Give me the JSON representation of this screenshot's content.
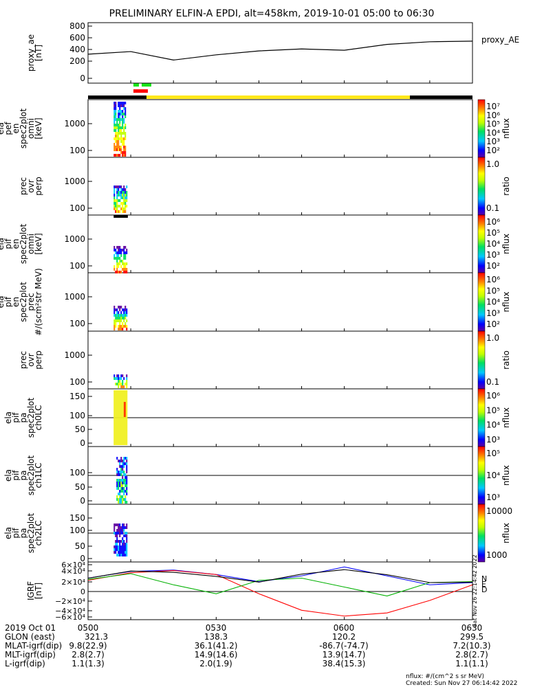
{
  "title": "PRELIMINARY ELFIN-A EPDI, alt=458km, 2019-10-01 05:00 to 06:30",
  "panels": [
    {
      "id": "ae",
      "ylabel": [
        "proxy_ae",
        "[nT]"
      ],
      "yticks": [
        "800",
        "600",
        "400",
        "200",
        "0"
      ],
      "legend": "proxy_AE"
    },
    {
      "id": "pef",
      "ylabel": [
        "ela",
        "pef",
        "en",
        "spec2plot",
        "omni",
        "[keV]"
      ],
      "yticks": [
        "1000",
        "100"
      ],
      "cbar_label": "nflux",
      "cbar_ticks": [
        "10⁷",
        "10⁶",
        "10⁵",
        "10⁴",
        "10³",
        "10²"
      ]
    },
    {
      "id": "ratio1",
      "ylabel": [
        "prec",
        "ovr",
        "perp"
      ],
      "yticks": [
        "1000",
        "100"
      ],
      "cbar_label": "ratio",
      "cbar_ticks": [
        "1.0",
        "0.1"
      ]
    },
    {
      "id": "pif",
      "ylabel": [
        "ela",
        "pif",
        "en",
        "spec2plot",
        "omni",
        "[keV]"
      ],
      "yticks": [
        "1000",
        "100"
      ],
      "cbar_label": "nflux",
      "cbar_ticks": [
        "10⁶",
        "10⁵",
        "10⁴",
        "10³",
        "10²"
      ]
    },
    {
      "id": "pif_prec",
      "ylabel": [
        "ela",
        "pif",
        "en",
        "spec2plot",
        "prec",
        "#/(scm²str MeV)"
      ],
      "yticks": [
        "1000",
        "100"
      ],
      "cbar_label": "nflux",
      "cbar_ticks": [
        "10⁶",
        "10⁵",
        "10⁴",
        "10³",
        "10²"
      ]
    },
    {
      "id": "ratio2",
      "ylabel": [
        "prec",
        "ovr",
        "perp"
      ],
      "yticks": [
        "1000",
        "100"
      ],
      "cbar_label": "ratio",
      "cbar_ticks": [
        "1.0",
        "0.1"
      ]
    },
    {
      "id": "ch0",
      "ylabel": [
        "ela",
        "pif",
        "pa",
        "spec2plot",
        "ch0LC"
      ],
      "yticks": [
        "150",
        "100",
        "50",
        "0"
      ],
      "cbar_label": "nflux",
      "cbar_ticks": [
        "10⁶",
        "10⁵",
        "10⁴",
        "10³"
      ]
    },
    {
      "id": "ch1",
      "ylabel": [
        "ela",
        "pif",
        "pa",
        "spec2plot",
        "ch1LC"
      ],
      "yticks": [
        "100",
        "50",
        "0"
      ],
      "cbar_label": "nflux",
      "cbar_ticks": [
        "10⁵",
        "10⁴",
        "10³"
      ]
    },
    {
      "id": "ch2",
      "ylabel": [
        "ela",
        "pif",
        "pa",
        "spec2plot",
        "ch2LC"
      ],
      "yticks": [
        "150",
        "100",
        "50",
        "0"
      ],
      "cbar_label": "nflux",
      "cbar_ticks": [
        "10000",
        "1000"
      ]
    },
    {
      "id": "igrf",
      "ylabel": [
        "IGRF",
        "[nT]"
      ],
      "yticks": [
        "6×10⁴",
        "4×10⁴",
        "2×10⁴",
        "0",
        "−2×10⁴",
        "−4×10⁴",
        "−6×10⁴"
      ],
      "legend_letters": [
        "N",
        "E",
        "D"
      ],
      "stamp": "Sat Nov 26 22:14:42 2022"
    }
  ],
  "footer": {
    "rows": [
      {
        "label": "2019 Oct 01",
        "values": [
          "0500",
          "0530",
          "0600",
          "0630"
        ]
      },
      {
        "label": "GLON (east)",
        "values": [
          "321.3",
          "138.3",
          "120.2",
          "299.5"
        ]
      },
      {
        "label": "MLAT-igrf(dip)",
        "values": [
          "9.8(22.9)",
          "36.1(41.2)",
          "-86.7(-74.7)",
          "7.2(10.3)"
        ]
      },
      {
        "label": "MLT-igrf(dip)",
        "values": [
          "2.8(2.7)",
          "14.9(14.6)",
          "13.9(14.7)",
          "2.8(2.7)"
        ]
      },
      {
        "label": "L-igrf(dip)",
        "values": [
          "1.1(1.3)",
          "2.0(1.9)",
          "38.4(15.3)",
          "1.1(1.1)"
        ]
      }
    ],
    "note1": "nflux: #/(cm^2 s sr MeV)",
    "note2": "Created: Sun Nov 27 06:14:42 2022"
  },
  "colors": {
    "ae": "#000000",
    "N": "#0000ff",
    "E": "#00b000",
    "D": "#ff0000",
    "bar_yellow": "#ffe81a",
    "bar_black": "#000000",
    "bar_green": "#19e619",
    "bar_red": "#ff0000"
  },
  "chart_data": [
    {
      "type": "line",
      "name": "proxy_AE",
      "x": [
        "05:00",
        "05:10",
        "05:20",
        "05:30",
        "05:40",
        "05:50",
        "06:00",
        "06:10",
        "06:20",
        "06:30"
      ],
      "values": [
        370,
        410,
        280,
        360,
        420,
        450,
        430,
        520,
        560,
        570
      ],
      "ylim": [
        0,
        800
      ]
    },
    {
      "type": "heatmap",
      "name": "ela pef en spec2plot omni",
      "x_range": [
        "05:06",
        "05:09"
      ],
      "ylim": [
        60,
        7000
      ],
      "log": true
    },
    {
      "type": "heatmap",
      "name": "ela pif en spec2plot omni",
      "x_range": [
        "05:06",
        "05:09"
      ],
      "ylim": [
        60,
        7000
      ],
      "log": true
    },
    {
      "type": "heatmap",
      "name": "ela pif pa spec2plot ch0LC",
      "x_range": [
        "05:06",
        "05:09"
      ],
      "ylim": [
        0,
        180
      ]
    },
    {
      "type": "line",
      "name": "IGRF",
      "x": [
        "05:00",
        "05:10",
        "05:20",
        "05:30",
        "05:40",
        "05:50",
        "06:00",
        "06:10",
        "06:20",
        "06:30"
      ],
      "series": [
        {
          "name": "N",
          "values": [
            30000,
            45000,
            48000,
            38000,
            22000,
            35000,
            55000,
            35000,
            15000,
            20000
          ]
        },
        {
          "name": "D",
          "values": [
            25000,
            42000,
            47000,
            38000,
            -5000,
            -42000,
            -55000,
            -48000,
            -20000,
            15000
          ]
        },
        {
          "name": "E",
          "values": [
            27000,
            40000,
            15000,
            -5000,
            25000,
            30000,
            10000,
            -10000,
            20000,
            22000
          ]
        }
      ],
      "ylim": [
        -60000,
        60000
      ]
    }
  ]
}
